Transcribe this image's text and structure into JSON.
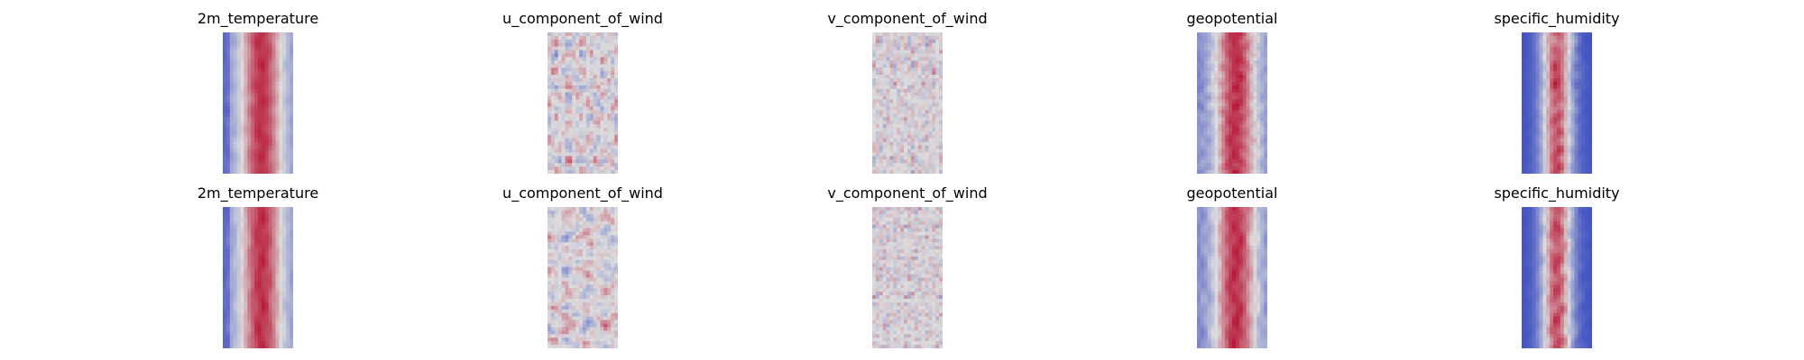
{
  "chart_data": {
    "type": "heatmap",
    "colormap": "coolwarm",
    "colors": {
      "cold": "#3b4cc0",
      "neutral": "#dddddd",
      "warm": "#b40426"
    },
    "axes_visible": false,
    "rows": [
      {
        "panels": [
          {
            "title": "2m_temperature",
            "pattern": "warm-band",
            "seed": 11
          },
          {
            "title": "u_component_of_wind",
            "pattern": "wind",
            "seed": 23
          },
          {
            "title": "v_component_of_wind",
            "pattern": "wind-v",
            "seed": 37
          },
          {
            "title": "geopotential",
            "pattern": "geo",
            "seed": 41
          },
          {
            "title": "specific_humidity",
            "pattern": "humidity",
            "seed": 53
          }
        ]
      },
      {
        "panels": [
          {
            "title": "2m_temperature",
            "pattern": "warm-band",
            "seed": 67
          },
          {
            "title": "u_component_of_wind",
            "pattern": "wind",
            "seed": 79
          },
          {
            "title": "v_component_of_wind",
            "pattern": "wind-v",
            "seed": 83
          },
          {
            "title": "geopotential",
            "pattern": "geo",
            "seed": 97
          },
          {
            "title": "specific_humidity",
            "pattern": "humidity",
            "seed": 101
          }
        ]
      }
    ]
  }
}
